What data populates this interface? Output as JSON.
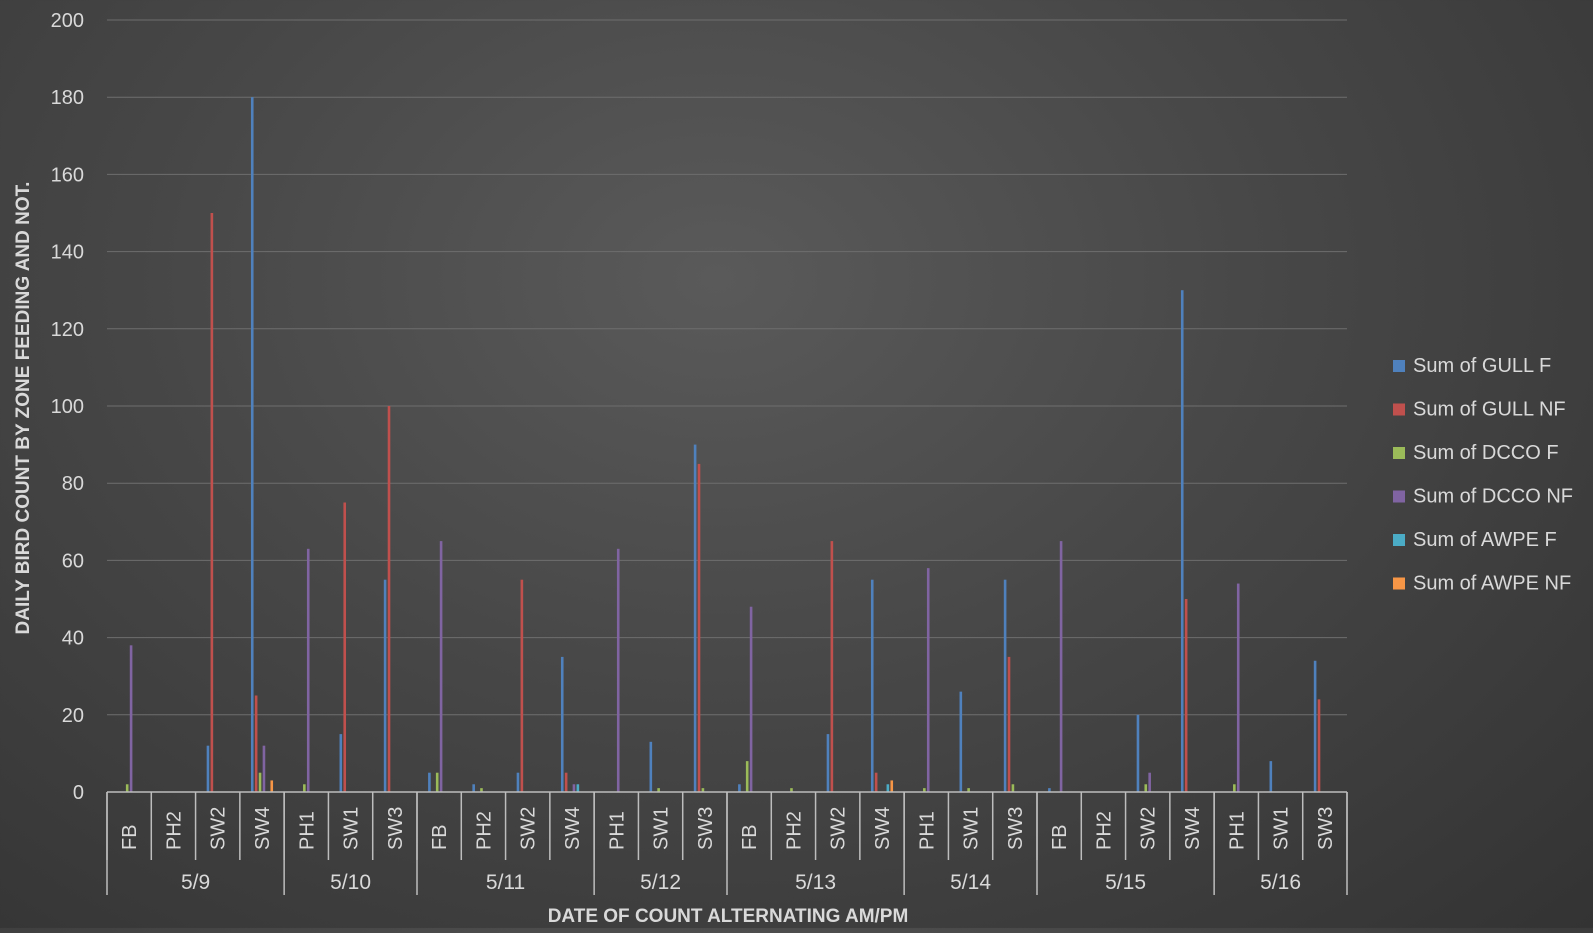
{
  "chart_data": {
    "type": "bar",
    "title": "",
    "xlabel": "DATE OF COUNT ALTERNATING AM/PM",
    "ylabel": "DAILY BIRD COUNT BY ZONE FEEDING AND NOT.",
    "ylim": [
      0,
      200
    ],
    "yticks": [
      0,
      20,
      40,
      60,
      80,
      100,
      120,
      140,
      160,
      180,
      200
    ],
    "grid": true,
    "legend_position": "right",
    "groups": [
      {
        "label": "5/9",
        "categories": [
          "FB",
          "PH2",
          "SW2",
          "SW4"
        ]
      },
      {
        "label": "5/10",
        "categories": [
          "PH1",
          "SW1",
          "SW3"
        ]
      },
      {
        "label": "5/11",
        "categories": [
          "FB",
          "PH2",
          "SW2",
          "SW4"
        ]
      },
      {
        "label": "5/12",
        "categories": [
          "PH1",
          "SW1",
          "SW3"
        ]
      },
      {
        "label": "5/13",
        "categories": [
          "FB",
          "PH2",
          "SW2",
          "SW4"
        ]
      },
      {
        "label": "5/14",
        "categories": [
          "PH1",
          "SW1",
          "SW3"
        ]
      },
      {
        "label": "5/15",
        "categories": [
          "FB",
          "PH2",
          "SW2",
          "SW4"
        ]
      },
      {
        "label": "5/16",
        "categories": [
          "PH1",
          "SW1",
          "SW3"
        ]
      }
    ],
    "series": [
      {
        "name": "Sum of GULL F",
        "color": "#4f81bd",
        "values": [
          0,
          0,
          12,
          180,
          0,
          15,
          55,
          5,
          2,
          5,
          35,
          0,
          13,
          90,
          2,
          0,
          15,
          55,
          0,
          26,
          55,
          1,
          0,
          20,
          130,
          0,
          8,
          34
        ]
      },
      {
        "name": "Sum of GULL NF",
        "color": "#c0504d",
        "values": [
          0,
          0,
          150,
          25,
          0,
          75,
          100,
          0,
          0,
          55,
          5,
          0,
          0,
          85,
          0,
          0,
          65,
          5,
          0,
          0,
          35,
          0,
          0,
          0,
          50,
          0,
          0,
          24
        ]
      },
      {
        "name": "Sum of DCCO F",
        "color": "#9bbb59",
        "values": [
          2,
          0,
          0,
          5,
          2,
          0,
          0,
          5,
          1,
          0,
          0,
          0,
          1,
          1,
          8,
          1,
          0,
          0,
          1,
          1,
          2,
          0,
          0,
          2,
          0,
          2,
          0,
          0
        ]
      },
      {
        "name": "Sum of DCCO NF",
        "color": "#8064a2",
        "values": [
          38,
          0,
          0,
          12,
          63,
          0,
          0,
          65,
          0,
          0,
          2,
          63,
          0,
          0,
          48,
          0,
          0,
          0,
          58,
          0,
          0,
          65,
          0,
          5,
          0,
          54,
          0,
          0
        ]
      },
      {
        "name": "Sum of AWPE F",
        "color": "#4bacc6",
        "values": [
          0,
          0,
          0,
          0,
          0,
          0,
          0,
          0,
          0,
          0,
          2,
          0,
          0,
          0,
          0,
          0,
          0,
          2,
          0,
          0,
          0,
          0,
          0,
          0,
          0,
          0,
          0,
          0
        ]
      },
      {
        "name": "Sum of AWPE NF",
        "color": "#f79646",
        "values": [
          0,
          0,
          0,
          3,
          0,
          0,
          0,
          0,
          0,
          0,
          0,
          0,
          0,
          0,
          0,
          0,
          0,
          3,
          0,
          0,
          0,
          0,
          0,
          0,
          0,
          0,
          0,
          0
        ]
      }
    ]
  }
}
